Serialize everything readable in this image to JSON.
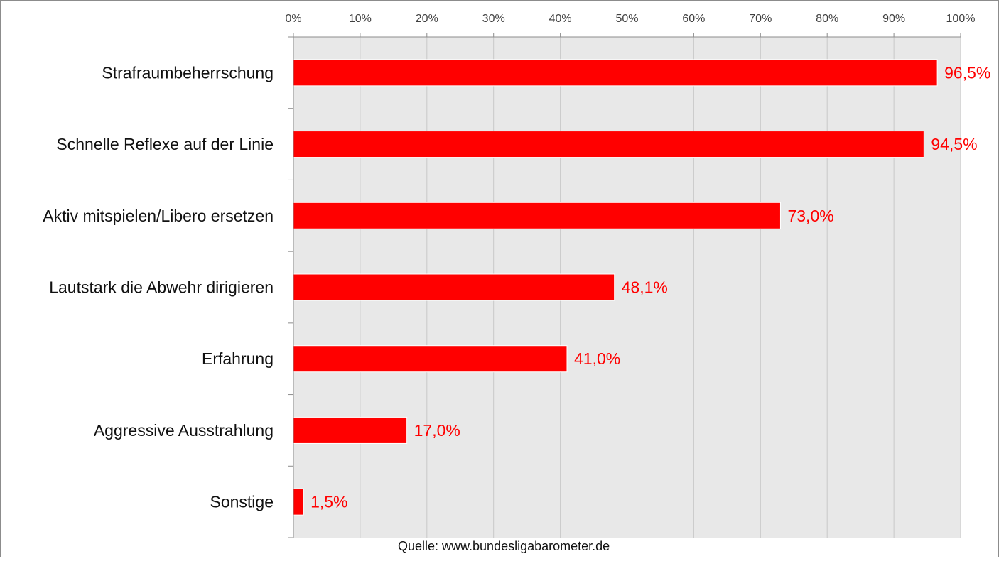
{
  "chart_data": {
    "type": "bar",
    "orientation": "horizontal",
    "categories": [
      "Strafraumbeherrschung",
      "Schnelle Reflexe auf der Linie",
      "Aktiv mitspielen/Libero ersetzen",
      "Lautstark die Abwehr dirigieren",
      "Erfahrung",
      "Aggressive Ausstrahlung",
      "Sonstige"
    ],
    "values": [
      96.5,
      94.5,
      73.0,
      48.1,
      41.0,
      17.0,
      1.5
    ],
    "data_labels": [
      "96,5%",
      "94,5%",
      "73,0%",
      "48,1%",
      "41,0%",
      "17,0%",
      "1,5%"
    ],
    "x_ticks": [
      0,
      10,
      20,
      30,
      40,
      50,
      60,
      70,
      80,
      90,
      100
    ],
    "x_tick_labels": [
      "0%",
      "10%",
      "20%",
      "30%",
      "40%",
      "50%",
      "60%",
      "70%",
      "80%",
      "90%",
      "100%"
    ],
    "xlim": [
      0,
      100
    ],
    "x_axis_position": "top",
    "grid": true,
    "title": "",
    "xlabel": "",
    "ylabel": "",
    "colors": {
      "bar": "#ff0000",
      "bar_stroke": "#ffffff",
      "data_label": "#ff0000",
      "plot_background": "#e8e8e8",
      "gridline": "#c8c8c8",
      "axis": "#8c8c8c"
    }
  },
  "footer": {
    "source": "Quelle: www.bundesligabarometer.de"
  }
}
